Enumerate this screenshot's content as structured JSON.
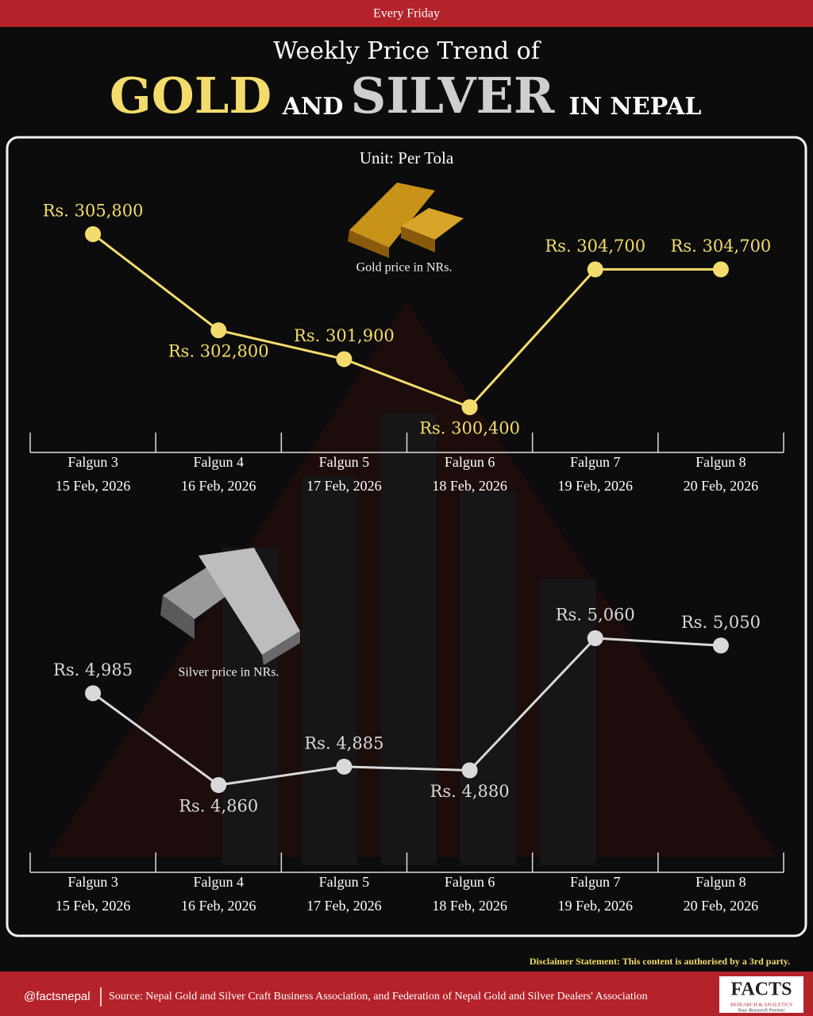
{
  "header": {
    "badge": "Every Friday",
    "title_line1": "Weekly Price Trend of",
    "title_gold": "GOLD",
    "title_and": "AND",
    "title_silver": "SILVER",
    "title_in": "IN NEPAL"
  },
  "unit": "Unit: Per Tola",
  "chart_data": [
    {
      "type": "line",
      "subtitle": "Gold price in NRs.",
      "categories": [
        "Falgun 3",
        "Falgun 4",
        "Falgun 5",
        "Falgun 6",
        "Falgun 7",
        "Falgun 8"
      ],
      "dates": [
        "15 Feb, 2026",
        "16 Feb, 2026",
        "17 Feb, 2026",
        "18 Feb, 2026",
        "19 Feb, 2026",
        "20 Feb, 2026"
      ],
      "values": [
        305800,
        302800,
        301900,
        300400,
        304700,
        304700
      ],
      "value_labels": [
        "Rs. 305,800",
        "Rs. 302,800",
        "Rs. 301,900",
        "Rs. 300,400",
        "Rs. 304,700",
        "Rs. 304,700"
      ],
      "color": "#f3dc6c"
    },
    {
      "type": "line",
      "subtitle": "Silver price in NRs.",
      "categories": [
        "Falgun 3",
        "Falgun 4",
        "Falgun 5",
        "Falgun 6",
        "Falgun 7",
        "Falgun 8"
      ],
      "dates": [
        "15 Feb, 2026",
        "16 Feb, 2026",
        "17 Feb, 2026",
        "18 Feb, 2026",
        "19 Feb, 2026",
        "20 Feb, 2026"
      ],
      "values": [
        4985,
        4860,
        4885,
        4880,
        5060,
        5050
      ],
      "value_labels": [
        "Rs. 4,985",
        "Rs. 4,860",
        "Rs. 4,885",
        "Rs. 4,880",
        "Rs. 5,060",
        "Rs. 5,050"
      ],
      "color": "#d9d9d9"
    }
  ],
  "disclaimer": "Disclaimer Statement: This content is authorised by a 3rd party.",
  "footer": {
    "handle": "@factsnepal",
    "source": "Source: Nepal Gold and Silver Craft Business Association, and Federation of Nepal Gold and Silver Dealers' Association",
    "logo": "FACTS",
    "logo_sub": "RESEARCH & ANALYTICS",
    "logo_tag": "Your Research Partner"
  }
}
